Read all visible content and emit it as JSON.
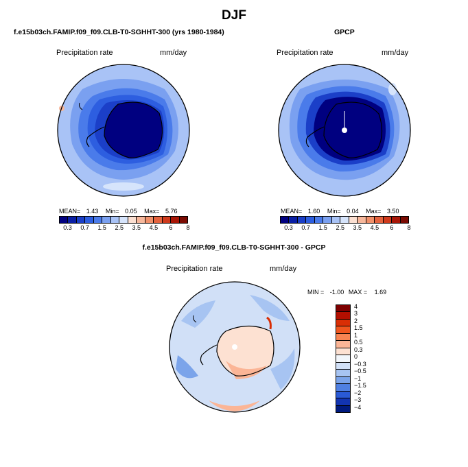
{
  "title": "DJF",
  "chart_data": [
    {
      "type": "heatmap",
      "subtype": "polar-stereographic map (Southern Hemisphere)",
      "title": "f.e15b03ch.FAMIP.f09_f09.CLB-T0-SGHHT-300 (yrs 1980-1984)",
      "variable": "Precipitation rate",
      "units": "mm/day",
      "stats": {
        "mean_label": "MEAN=",
        "mean": "1.43",
        "min_label": "Min=",
        "min": "0.05",
        "max_label": "Max=",
        "max": "5.76"
      },
      "levels": [
        "0.3",
        "0.7",
        "1",
        "1.5",
        "2",
        "2.5",
        "3",
        "3.5",
        "4",
        "4.5",
        "5",
        "6",
        "7",
        "8"
      ],
      "tick_labels": [
        "0.3",
        "0.7",
        "1.5",
        "2.5",
        "3.5",
        "4.5",
        "6",
        "8"
      ]
    },
    {
      "type": "heatmap",
      "subtype": "polar-stereographic map (Southern Hemisphere)",
      "title": "GPCP",
      "variable": "Precipitation rate",
      "units": "mm/day",
      "stats": {
        "mean_label": "MEAN=",
        "mean": "1.60",
        "min_label": "Min=",
        "min": "0.04",
        "max_label": "Max=",
        "max": "3.50"
      },
      "levels": [
        "0.3",
        "0.7",
        "1",
        "1.5",
        "2",
        "2.5",
        "3",
        "3.5",
        "4",
        "4.5",
        "5",
        "6",
        "7",
        "8"
      ],
      "tick_labels": [
        "0.3",
        "0.7",
        "1.5",
        "2.5",
        "3.5",
        "4.5",
        "6",
        "8"
      ]
    },
    {
      "type": "heatmap",
      "subtype": "polar-stereographic difference map",
      "title": "f.e15b03ch.FAMIP.f09_f09.CLB-T0-SGHHT-300 - GPCP",
      "variable": "Precipitation rate",
      "units": "mm/day",
      "stats": {
        "min_label": "MIN =",
        "min": "-1.00",
        "max_label": "MAX =",
        "max": "1.69"
      },
      "levels": [
        "4",
        "3",
        "2",
        "1.5",
        "1",
        "0.5",
        "0.3",
        "0",
        "-0.3",
        "-0.5",
        "-1",
        "-1.5",
        "-2",
        "-3",
        "-4"
      ]
    }
  ],
  "palette_abs": [
    "#000080",
    "#0a1fa5",
    "#1b3fc8",
    "#2d5ee0",
    "#4a7bea",
    "#7aa0f0",
    "#a9c3f6",
    "#d6e4fb",
    "#fbe0d2",
    "#f7b89c",
    "#f0906a",
    "#e4633e",
    "#cf3a1c",
    "#a81606",
    "#7a0a02"
  ],
  "palette_diff": [
    "#7d0000",
    "#b30f00",
    "#d92e05",
    "#f0561f",
    "#f88452",
    "#fbb596",
    "#fde1d2",
    "#f2f6fb",
    "#d1e0f7",
    "#a7c4f2",
    "#7ba4ea",
    "#4f80e2",
    "#2a5ad6",
    "#1234b2",
    "#001a7e"
  ]
}
